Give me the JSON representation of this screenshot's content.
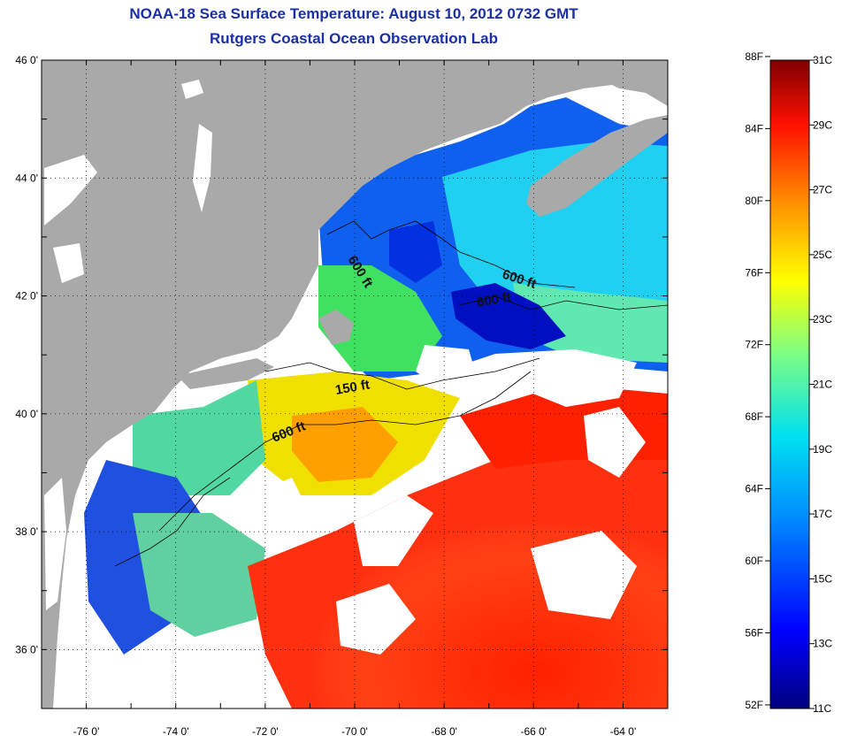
{
  "title": {
    "line1": "NOAA-18 Sea Surface Temperature:  August 10, 2012 0732 GMT",
    "line2": "Rutgers Coastal Ocean Observation Lab"
  },
  "map": {
    "lon_range": [
      -77,
      -63
    ],
    "lat_range": [
      35,
      46
    ],
    "lat_ticks": [
      {
        "value": 46,
        "label": "46 0'"
      },
      {
        "value": 44,
        "label": "44 0'"
      },
      {
        "value": 42,
        "label": "42 0'"
      },
      {
        "value": 40,
        "label": "40 0'"
      },
      {
        "value": 38,
        "label": "38 0'"
      },
      {
        "value": 36,
        "label": "36 0'"
      }
    ],
    "lon_ticks": [
      {
        "value": -76,
        "label": "-76 0'"
      },
      {
        "value": -74,
        "label": "-74 0'"
      },
      {
        "value": -72,
        "label": "-72 0'"
      },
      {
        "value": -70,
        "label": "-70 0'"
      },
      {
        "value": -68,
        "label": "-68 0'"
      },
      {
        "value": -66,
        "label": "-66 0'"
      },
      {
        "value": -64,
        "label": "-64 0'"
      }
    ],
    "contour_labels": [
      "600 ft",
      "600 ft",
      "600 ft",
      "150 ft",
      "600 ft"
    ],
    "colors": {
      "land": "#a9a9a9",
      "cloud": "#ffffff"
    }
  },
  "colorbar": {
    "fahrenheit_labels": [
      "88F",
      "84F",
      "80F",
      "76F",
      "72F",
      "68F",
      "64F",
      "60F",
      "56F",
      "52F"
    ],
    "celsius_labels": [
      "31C",
      "29C",
      "27C",
      "25C",
      "23C",
      "21C",
      "19C",
      "17C",
      "15C",
      "13C",
      "11C"
    ],
    "range_c": [
      11,
      31
    ]
  }
}
